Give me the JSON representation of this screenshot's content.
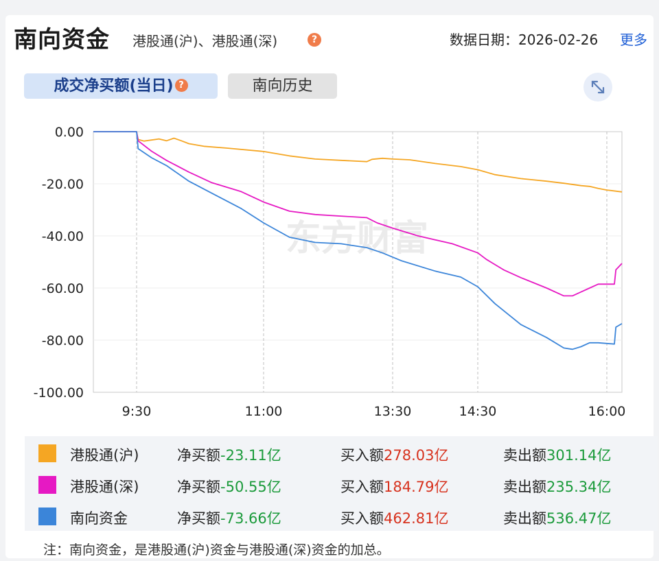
{
  "header": {
    "title": "南向资金",
    "subtitle": "港股通(沪)、港股通(深)",
    "date_label": "数据日期：2026-02-26",
    "more_label": "更多"
  },
  "tabs": [
    {
      "label": "成交净买额(当日)",
      "active": true
    },
    {
      "label": "南向历史",
      "active": false
    }
  ],
  "chart_data": {
    "type": "line",
    "xlabel": "",
    "ylabel": "",
    "ylim": [
      -100,
      0
    ],
    "y_ticks": [
      "0.00",
      "-20.00",
      "-40.00",
      "-60.00",
      "-80.00",
      "-100.00"
    ],
    "x_ticks": [
      "9:30",
      "11:00",
      "13:30",
      "14:30",
      "16:00"
    ],
    "grid": true,
    "series": [
      {
        "name": "港股通(沪)",
        "color": "#f5a623",
        "points": [
          [
            9.0,
            0.0
          ],
          [
            9.3,
            0.0
          ],
          [
            9.32,
            -3.0
          ],
          [
            9.4,
            -3.6
          ],
          [
            9.6,
            -2.8
          ],
          [
            9.7,
            -3.5
          ],
          [
            9.8,
            -2.5
          ],
          [
            9.9,
            -3.5
          ],
          [
            10.0,
            -4.6
          ],
          [
            10.2,
            -5.6
          ],
          [
            10.5,
            -6.3
          ],
          [
            11.0,
            -7.6
          ],
          [
            11.5,
            -9.3
          ],
          [
            12.0,
            -10.5
          ],
          [
            13.0,
            -11.5
          ],
          [
            13.1,
            -10.6
          ],
          [
            13.3,
            -10.2
          ],
          [
            13.5,
            -10.5
          ],
          [
            13.7,
            -10.8
          ],
          [
            14.0,
            -12.2
          ],
          [
            14.3,
            -13.4
          ],
          [
            14.5,
            -14.6
          ],
          [
            14.7,
            -16.5
          ],
          [
            15.0,
            -18.0
          ],
          [
            15.3,
            -19.0
          ],
          [
            15.5,
            -19.8
          ],
          [
            15.7,
            -20.7
          ],
          [
            15.8,
            -21.0
          ],
          [
            15.9,
            -21.8
          ],
          [
            16.0,
            -22.4
          ],
          [
            16.1,
            -23.11
          ]
        ]
      },
      {
        "name": "港股通(深)",
        "color": "#e619c3",
        "points": [
          [
            9.0,
            0.0
          ],
          [
            9.3,
            0.0
          ],
          [
            9.32,
            -3.5
          ],
          [
            9.5,
            -7.5
          ],
          [
            9.7,
            -11.0
          ],
          [
            10.0,
            -15.5
          ],
          [
            10.3,
            -19.5
          ],
          [
            10.7,
            -23.0
          ],
          [
            11.0,
            -27.0
          ],
          [
            11.5,
            -30.5
          ],
          [
            12.0,
            -31.8
          ],
          [
            13.0,
            -33.0
          ],
          [
            13.2,
            -35.0
          ],
          [
            13.5,
            -37.0
          ],
          [
            13.8,
            -40.0
          ],
          [
            14.2,
            -43.0
          ],
          [
            14.5,
            -46.5
          ],
          [
            14.6,
            -49.0
          ],
          [
            14.8,
            -53.0
          ],
          [
            15.0,
            -56.0
          ],
          [
            15.3,
            -60.0
          ],
          [
            15.5,
            -63.0
          ],
          [
            15.6,
            -63.0
          ],
          [
            15.7,
            -61.5
          ],
          [
            15.8,
            -60.0
          ],
          [
            15.9,
            -58.5
          ],
          [
            16.05,
            -58.5
          ],
          [
            16.06,
            -53.0
          ],
          [
            16.1,
            -50.55
          ]
        ]
      },
      {
        "name": "南向资金",
        "color": "#3b85d9",
        "points": [
          [
            9.0,
            0.0
          ],
          [
            9.3,
            0.0
          ],
          [
            9.32,
            -6.5
          ],
          [
            9.5,
            -10.0
          ],
          [
            9.7,
            -13.0
          ],
          [
            10.0,
            -19.0
          ],
          [
            10.3,
            -23.5
          ],
          [
            10.7,
            -29.5
          ],
          [
            11.0,
            -35.0
          ],
          [
            11.5,
            -40.5
          ],
          [
            12.0,
            -42.5
          ],
          [
            12.5,
            -43.0
          ],
          [
            13.0,
            -44.5
          ],
          [
            13.3,
            -46.5
          ],
          [
            13.6,
            -49.5
          ],
          [
            14.0,
            -53.5
          ],
          [
            14.3,
            -55.8
          ],
          [
            14.5,
            -59.5
          ],
          [
            14.7,
            -66.0
          ],
          [
            15.0,
            -74.0
          ],
          [
            15.3,
            -79.0
          ],
          [
            15.5,
            -83.0
          ],
          [
            15.6,
            -83.5
          ],
          [
            15.7,
            -82.5
          ],
          [
            15.8,
            -81.0
          ],
          [
            15.9,
            -81.0
          ],
          [
            16.05,
            -81.5
          ],
          [
            16.06,
            -75.0
          ],
          [
            16.1,
            -73.66
          ]
        ]
      }
    ]
  },
  "legend": [
    {
      "name": "港股通(沪)",
      "color": "#f5a623",
      "net_label": "净买额",
      "net_value": "-23.11亿",
      "buy_label": "买入额",
      "buy_value": "278.03亿",
      "sell_label": "卖出额",
      "sell_value": "301.14亿"
    },
    {
      "name": "港股通(深)",
      "color": "#e619c3",
      "net_label": "净买额",
      "net_value": "-50.55亿",
      "buy_label": "买入额",
      "buy_value": "184.79亿",
      "sell_label": "卖出额",
      "sell_value": "235.34亿"
    },
    {
      "name": "南向资金",
      "color": "#3b85d9",
      "net_label": "净买额",
      "net_value": "-73.66亿",
      "buy_label": "买入额",
      "buy_value": "462.81亿",
      "sell_label": "卖出额",
      "sell_value": "536.47亿"
    }
  ],
  "note": "注：南向资金，是港股通(沪)资金与港股通(深)资金的加总。",
  "watermark": "东方财富"
}
